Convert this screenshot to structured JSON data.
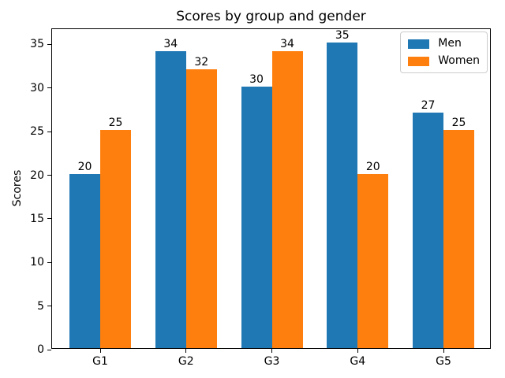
{
  "chart_data": {
    "type": "bar",
    "title": "Scores by group and gender",
    "xlabel": "",
    "ylabel": "Scores",
    "categories": [
      "G1",
      "G2",
      "G3",
      "G4",
      "G5"
    ],
    "series": [
      {
        "name": "Men",
        "color": "#1f77b4",
        "values": [
          20,
          34,
          30,
          35,
          27
        ]
      },
      {
        "name": "Women",
        "color": "#ff7f0e",
        "values": [
          25,
          32,
          34,
          20,
          25
        ]
      }
    ],
    "bar_value_labels_shown": true,
    "ylim": [
      0,
      36.75
    ],
    "yticks": [
      0,
      5,
      10,
      15,
      20,
      25,
      30,
      35
    ],
    "grid": false,
    "legend_position": "upper right",
    "background_color": "#ffffff",
    "axis_color": "#000000",
    "legend_border_color": "#cccccc"
  }
}
